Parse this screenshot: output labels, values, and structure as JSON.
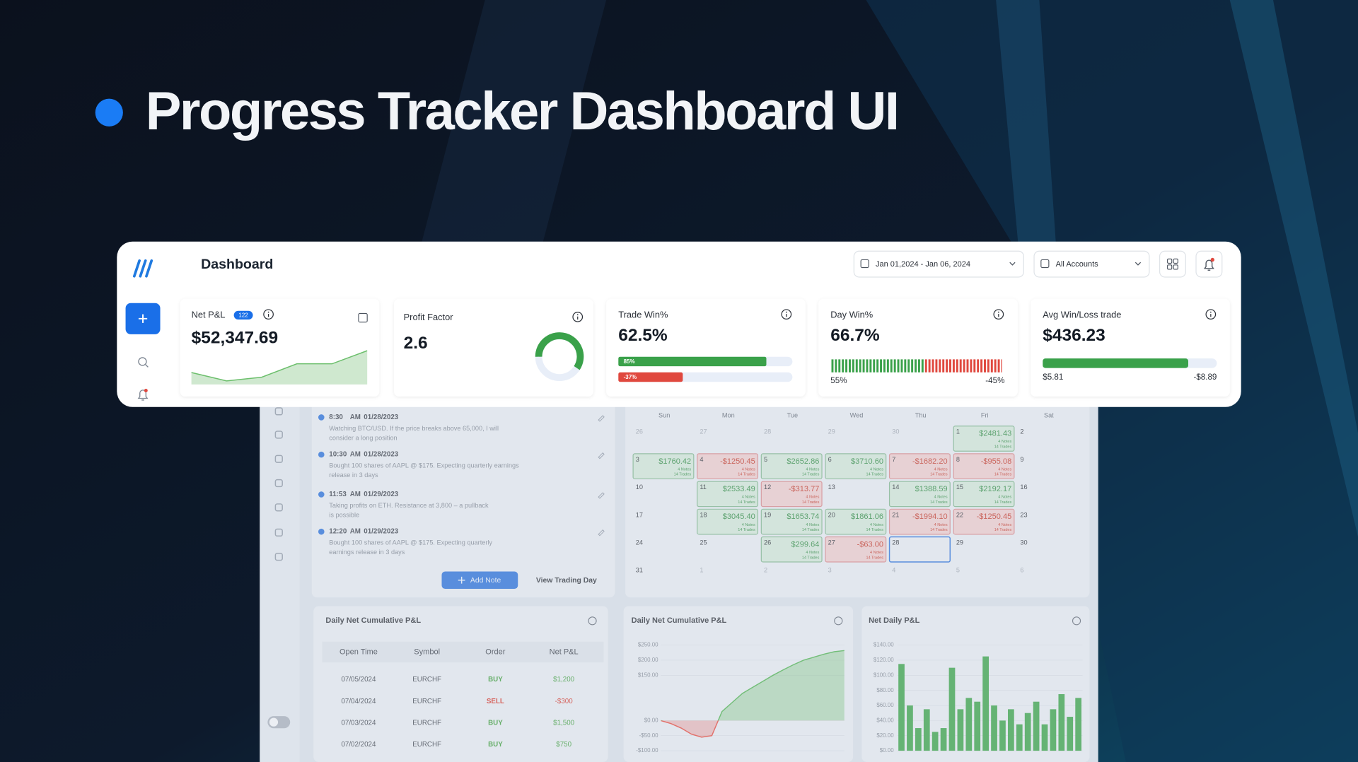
{
  "header": {
    "title": "Progress Tracker Dashboard UI"
  },
  "topbar": {
    "title": "Dashboard",
    "date_range": "Jan 01,2024 - Jan 06, 2024",
    "account": "All Accounts"
  },
  "stats": {
    "net_pnl": {
      "label": "Net P&L",
      "badge": "122",
      "value": "$52,347.69",
      "sparkline": [
        30,
        3,
        15,
        58,
        58,
        100
      ],
      "ylim": [
        0,
        100
      ]
    },
    "profit_factor": {
      "label": "Profit Factor",
      "value": "2.6"
    },
    "trade_win": {
      "label": "Trade Win%",
      "value": "62.5%",
      "win": {
        "value": 85,
        "label": "85%"
      },
      "loss": {
        "value": -37,
        "label": "-37%"
      }
    },
    "day_win": {
      "label": "Day Win%",
      "value": "66.7%",
      "win": {
        "value": 55,
        "label": "55%"
      },
      "loss": {
        "value": -45,
        "label": "-45%"
      }
    },
    "avg_win_loss": {
      "label": "Avg Win/Loss trade",
      "value": "$436.23",
      "win": "$5.81",
      "loss": "-$8.89"
    }
  },
  "notes": {
    "items": [
      {
        "time": "8:30",
        "period": "AM",
        "date": "01/28/2023",
        "text": [
          "Watching BTC/USD. If the price breaks above 65,000, I will",
          "consider a long position"
        ]
      },
      {
        "time": "10:30",
        "period": "AM",
        "date": "01/28/2023",
        "text": [
          "Bought 100 shares of AAPL @ $175. Expecting quarterly earnings",
          "release in 3 days"
        ]
      },
      {
        "time": "11:53",
        "period": "AM",
        "date": "01/29/2023",
        "text": [
          "Taking profits on ETH. Resistance at 3,800 – a pullback",
          "is possible"
        ]
      },
      {
        "time": "12:20",
        "period": "AM",
        "date": "01/29/2023",
        "text": [
          "Bought 100 shares of AAPL @ $175. Expecting quarterly",
          "earnings release in 3 days"
        ]
      }
    ],
    "add_button": "Add Note",
    "view_button": "View Trading Day"
  },
  "calendar": {
    "weekdays": [
      "Sun",
      "Mon",
      "Tue",
      "Wed",
      "Thu",
      "Fri",
      "Sat"
    ],
    "rows": [
      [
        {
          "day": 26,
          "outside": true
        },
        {
          "day": 27,
          "outside": true
        },
        {
          "day": 28,
          "outside": true
        },
        {
          "day": 29,
          "outside": true
        },
        {
          "day": 30,
          "outside": true
        },
        {
          "day": 1,
          "pnl": "$2481.43",
          "notes": "4 Notes",
          "trades": "14 Trades"
        },
        {
          "day": 2
        }
      ],
      [
        {
          "day": 3,
          "pnl": "$1760.42",
          "notes": "4 Notes",
          "trades": "14 Trades"
        },
        {
          "day": 4,
          "pnl": "-$1250.45",
          "notes": "4 Notes",
          "trades": "14 Trades"
        },
        {
          "day": 5,
          "pnl": "$2652.86",
          "notes": "4 Notes",
          "trades": "14 Trades"
        },
        {
          "day": 6,
          "pnl": "$3710.60",
          "notes": "4 Notes",
          "trades": "14 Trades"
        },
        {
          "day": 7,
          "pnl": "-$1682.20",
          "notes": "4 Notes",
          "trades": "14 Trades"
        },
        {
          "day": 8,
          "pnl": "-$955.08",
          "notes": "4 Notes",
          "trades": "14 Trades"
        },
        {
          "day": 9
        }
      ],
      [
        {
          "day": 10
        },
        {
          "day": 11,
          "pnl": "$2533.49",
          "notes": "4 Notes",
          "trades": "14 Trades"
        },
        {
          "day": 12,
          "pnl": "-$313.77",
          "notes": "4 Notes",
          "trades": "14 Trades"
        },
        {
          "day": 13
        },
        {
          "day": 14,
          "pnl": "$1388.59",
          "notes": "4 Notes",
          "trades": "14 Trades"
        },
        {
          "day": 15,
          "pnl": "$2192.17",
          "notes": "4 Notes",
          "trades": "14 Trades"
        },
        {
          "day": 16
        }
      ],
      [
        {
          "day": 17
        },
        {
          "day": 18,
          "pnl": "$3045.40",
          "notes": "4 Notes",
          "trades": "14 Trades"
        },
        {
          "day": 19,
          "pnl": "$1653.74",
          "notes": "4 Notes",
          "trades": "14 Trades"
        },
        {
          "day": 20,
          "pnl": "$1861.06",
          "notes": "4 Notes",
          "trades": "14 Trades"
        },
        {
          "day": 21,
          "pnl": "-$1994.10",
          "notes": "4 Notes",
          "trades": "14 Trades"
        },
        {
          "day": 22,
          "pnl": "-$1250.45",
          "notes": "4 Notes",
          "trades": "14 Trades"
        },
        {
          "day": 23
        }
      ],
      [
        {
          "day": 24
        },
        {
          "day": 25
        },
        {
          "day": 26,
          "pnl": "$299.64",
          "notes": "4 Notes",
          "trades": "14 Trades"
        },
        {
          "day": 27,
          "pnl": "-$63.00",
          "notes": "4 Notes",
          "trades": "14 Trades"
        },
        {
          "day": 28,
          "selected": true
        },
        {
          "day": 29
        },
        {
          "day": 30
        }
      ],
      [
        {
          "day": 31
        },
        {
          "day": 1,
          "outside": true
        },
        {
          "day": 2,
          "outside": true
        },
        {
          "day": 3,
          "outside": true
        },
        {
          "day": 4,
          "outside": true
        },
        {
          "day": 5,
          "outside": true
        },
        {
          "day": 6,
          "outside": true
        }
      ]
    ]
  },
  "table": {
    "title": "Daily Net Cumulative P&L",
    "headers": [
      "Open Time",
      "Symbol",
      "Order",
      "Net P&L"
    ],
    "rows": [
      [
        "07/05/2024",
        "EURCHF",
        "BUY",
        "$1,200"
      ],
      [
        "07/04/2024",
        "EURCHF",
        "SELL",
        "-$300"
      ],
      [
        "07/03/2024",
        "EURCHF",
        "BUY",
        "$1,500"
      ],
      [
        "07/02/2024",
        "EURCHF",
        "BUY",
        "$750"
      ]
    ]
  },
  "chart_data": [
    {
      "type": "area",
      "title": "Daily Net Cumulative P&L",
      "categories": [
        null,
        null,
        null,
        null,
        null,
        null,
        null,
        null,
        null,
        null,
        null,
        null,
        null,
        null,
        null,
        null,
        null,
        null,
        null
      ],
      "values": [
        0,
        -10,
        -25,
        -45,
        -55,
        -50,
        30,
        60,
        90,
        110,
        130,
        150,
        168,
        185,
        200,
        210,
        220,
        228,
        232
      ],
      "color": "#4caf50",
      "negative_color": "#e0483e",
      "ylim": [
        -100,
        250
      ],
      "yticks": [
        {
          "value": 250,
          "label": "$250.00"
        },
        {
          "value": 200,
          "label": "$200.00"
        },
        {
          "value": 150,
          "label": "$150.00"
        },
        {
          "value": 0,
          "label": "$0.00"
        },
        {
          "value": -50,
          "label": "-$50.00"
        },
        {
          "value": -100,
          "label": "-$100.00"
        }
      ]
    },
    {
      "type": "bar",
      "title": "Net Daily P&L",
      "categories": [
        null,
        null,
        null,
        null,
        null,
        null,
        null,
        null,
        null,
        null,
        null,
        null,
        null,
        null,
        null,
        null,
        null,
        null,
        null,
        null,
        null,
        null
      ],
      "values": [
        115,
        60,
        30,
        55,
        25,
        30,
        110,
        55,
        70,
        65,
        125,
        60,
        40,
        55,
        35,
        50,
        65,
        35,
        55,
        75,
        45,
        70
      ],
      "color": "#3aa14a",
      "ylim": [
        0,
        140
      ],
      "yticks": [
        {
          "value": 140,
          "label": "$140.00"
        },
        {
          "value": 120,
          "label": "$120.00"
        },
        {
          "value": 100,
          "label": "$100.00"
        },
        {
          "value": 80,
          "label": "$80.00"
        },
        {
          "value": 60,
          "label": "$60.00"
        },
        {
          "value": 40,
          "label": "$40.00"
        },
        {
          "value": 20,
          "label": "$20.00"
        },
        {
          "value": 0,
          "label": "$0.00"
        }
      ]
    }
  ]
}
